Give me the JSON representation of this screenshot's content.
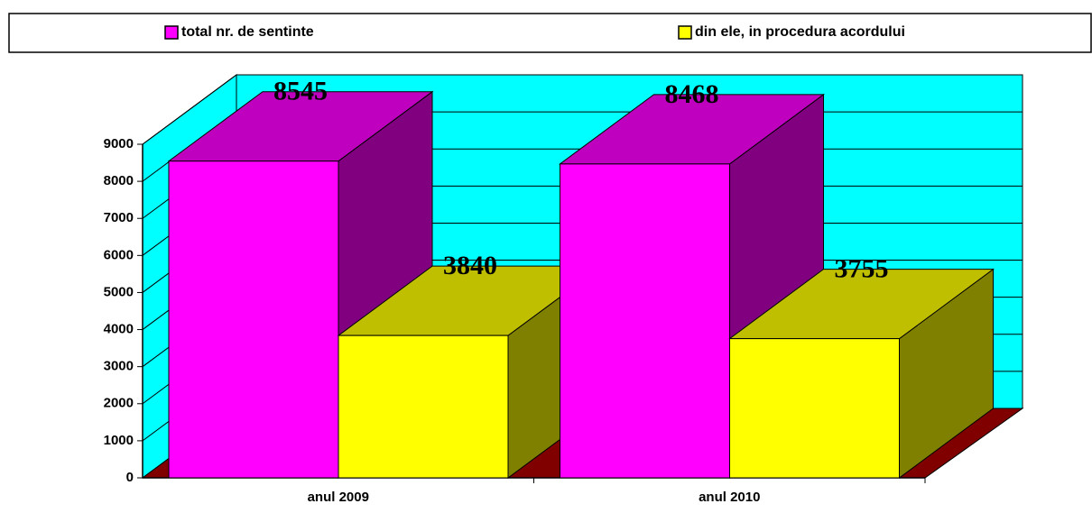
{
  "chart_data": {
    "type": "bar3d",
    "categories": [
      "anul 2009",
      "anul 2010"
    ],
    "series": [
      {
        "name": "total nr. de sentinte",
        "color": "#ff00ff",
        "values": [
          8545,
          8468
        ]
      },
      {
        "name": "din ele, in procedura acordului",
        "color": "#ffff00",
        "values": [
          3840,
          3755
        ]
      }
    ],
    "ylim": [
      0,
      9000
    ],
    "yticks": [
      0,
      1000,
      2000,
      3000,
      4000,
      5000,
      6000,
      7000,
      8000,
      9000
    ],
    "grid": true,
    "legend": "top",
    "wall_color": "#00ffff",
    "floor_color": "#800000"
  }
}
